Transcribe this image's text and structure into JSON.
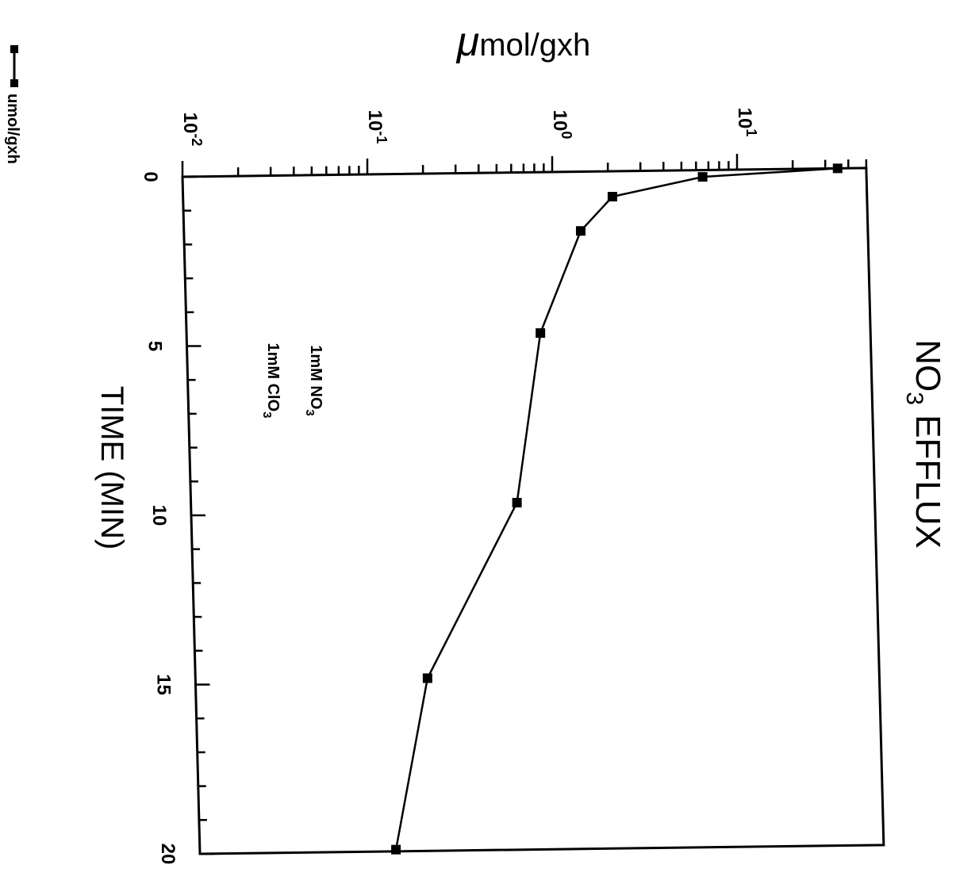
{
  "chart_data": {
    "type": "line",
    "title": "NO3 EFFLUX",
    "title_main": "NO",
    "title_sub": "3",
    "title_rest": " EFFLUX",
    "xlabel": "TIME  (MIN)",
    "ylabel": "μmol/gxh",
    "ylabel_mu": "μ",
    "ylabel_rest": "mol/gxh",
    "xlim": [
      0,
      20
    ],
    "ylim": [
      0.01,
      50
    ],
    "yscale": "log",
    "x_ticks": [
      "0",
      "5",
      "10",
      "15",
      "20"
    ],
    "y_tick_bases": [
      "10",
      "10",
      "10",
      "10"
    ],
    "y_tick_exps": [
      "-2",
      "-1",
      "0",
      "1"
    ],
    "annotations": [
      {
        "main": "1mM  NO",
        "sub": "3"
      },
      {
        "main": "1mM  ClO",
        "sub": "3"
      }
    ],
    "legend": {
      "placement": "left",
      "label": "umol/gxh"
    },
    "series": [
      {
        "name": "umol/gxh",
        "x": [
          0.0,
          0.2,
          0.75,
          1.75,
          4.75,
          9.75,
          14.9,
          19.95
        ],
        "y": [
          35,
          6.5,
          2.1,
          1.4,
          0.82,
          0.58,
          0.18,
          0.115
        ]
      }
    ]
  }
}
